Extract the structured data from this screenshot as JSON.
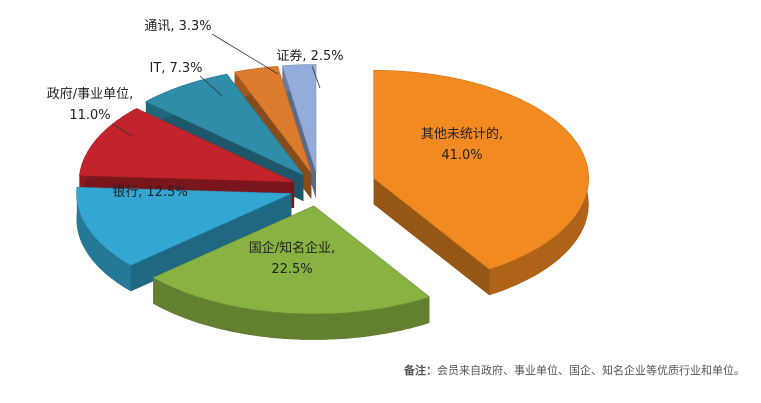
{
  "chart_data": {
    "type": "pie3d",
    "categories": [
      "其他未统计的",
      "国企/知名企业",
      "银行",
      "政府/事业单位",
      "IT",
      "通讯",
      "证券"
    ],
    "values": [
      41.0,
      22.5,
      12.5,
      11.0,
      7.3,
      3.3,
      2.5
    ],
    "value_labels": [
      "41.0%",
      "22.5%",
      "12.5%",
      "11.0%",
      "7.3%",
      "3.3%",
      "2.5%"
    ],
    "label_separator": ",",
    "colors": [
      "#f28a22",
      "#88b241",
      "#33a6d1",
      "#c3242c",
      "#2f8daa",
      "#dc7a2d",
      "#93acd9"
    ],
    "note_label": "备注：",
    "note": "会员来自政府、事业单位、国企、知名企业等优质行业和单位。"
  }
}
